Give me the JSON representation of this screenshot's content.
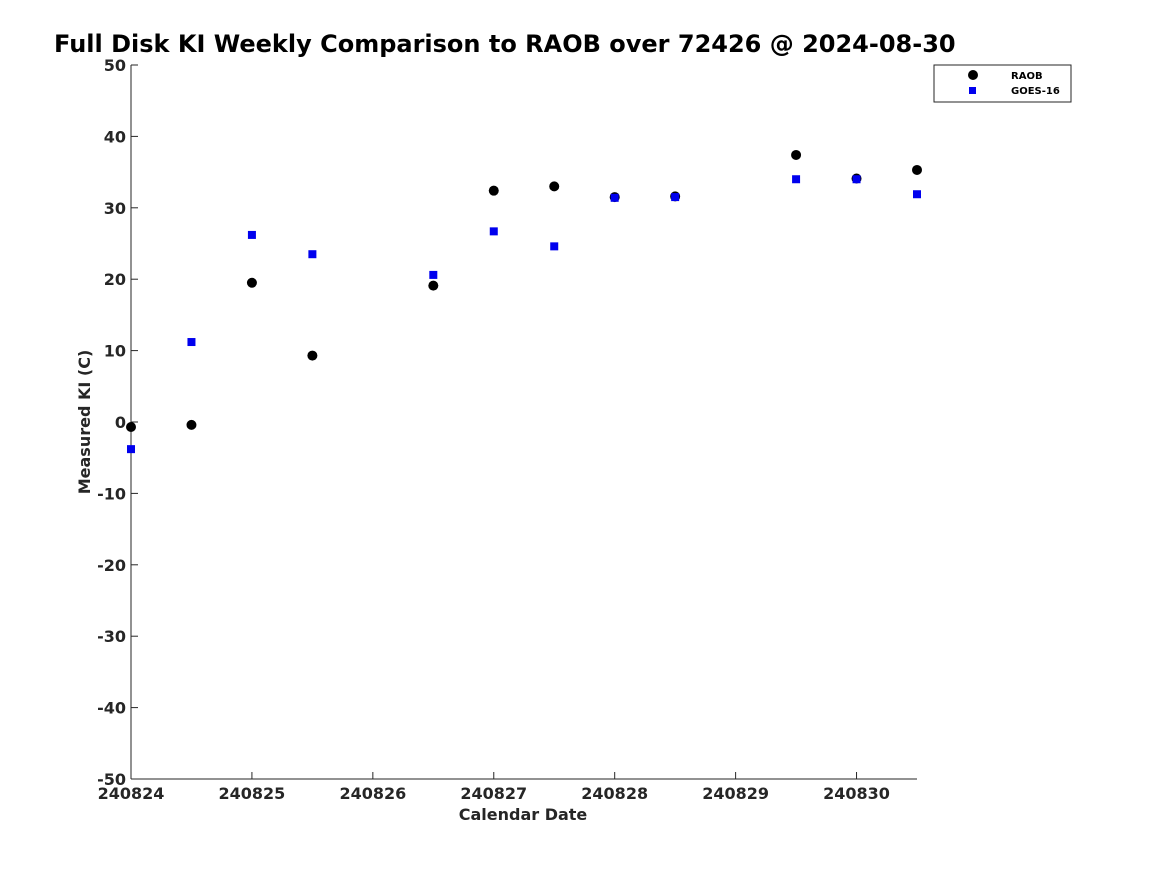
{
  "chart_data": {
    "type": "scatter",
    "title": "Full Disk KI Weekly Comparison to RAOB over 72426 @ 2024-08-30",
    "xlabel": "Calendar Date",
    "ylabel": "Measured KI (C)",
    "xlim": [
      240824,
      240830.5
    ],
    "ylim": [
      -50,
      50
    ],
    "x_ticks": [
      240824,
      240825,
      240826,
      240827,
      240828,
      240829,
      240830
    ],
    "x_tick_labels": [
      "240824",
      "240825",
      "240826",
      "240827",
      "240828",
      "240829",
      "240830"
    ],
    "y_ticks": [
      -50,
      -40,
      -30,
      -20,
      -10,
      0,
      10,
      20,
      30,
      40,
      50
    ],
    "y_tick_labels": [
      "-50",
      "-40",
      "-30",
      "-20",
      "-10",
      "0",
      "10",
      "20",
      "30",
      "40",
      "50"
    ],
    "grid": false,
    "legend_position": "top-right",
    "series": [
      {
        "name": "RAOB",
        "marker": "circle",
        "color": "#000000",
        "points": [
          [
            240824.0,
            -0.7
          ],
          [
            240824.5,
            -0.4
          ],
          [
            240825.0,
            19.5
          ],
          [
            240825.5,
            9.3
          ],
          [
            240826.5,
            19.1
          ],
          [
            240827.0,
            32.4
          ],
          [
            240827.5,
            33.0
          ],
          [
            240828.0,
            31.5
          ],
          [
            240828.5,
            31.6
          ],
          [
            240829.5,
            37.4
          ],
          [
            240830.0,
            34.1
          ],
          [
            240830.5,
            35.3
          ]
        ]
      },
      {
        "name": "GOES-16",
        "marker": "square",
        "color": "#0000ee",
        "points": [
          [
            240824.0,
            -3.8
          ],
          [
            240824.5,
            11.2
          ],
          [
            240825.0,
            26.2
          ],
          [
            240825.5,
            23.5
          ],
          [
            240826.5,
            20.6
          ],
          [
            240827.0,
            26.7
          ],
          [
            240827.5,
            24.6
          ],
          [
            240828.0,
            31.4
          ],
          [
            240828.5,
            31.5
          ],
          [
            240829.5,
            34.0
          ],
          [
            240830.0,
            34.0
          ],
          [
            240830.5,
            31.9
          ]
        ]
      }
    ]
  }
}
